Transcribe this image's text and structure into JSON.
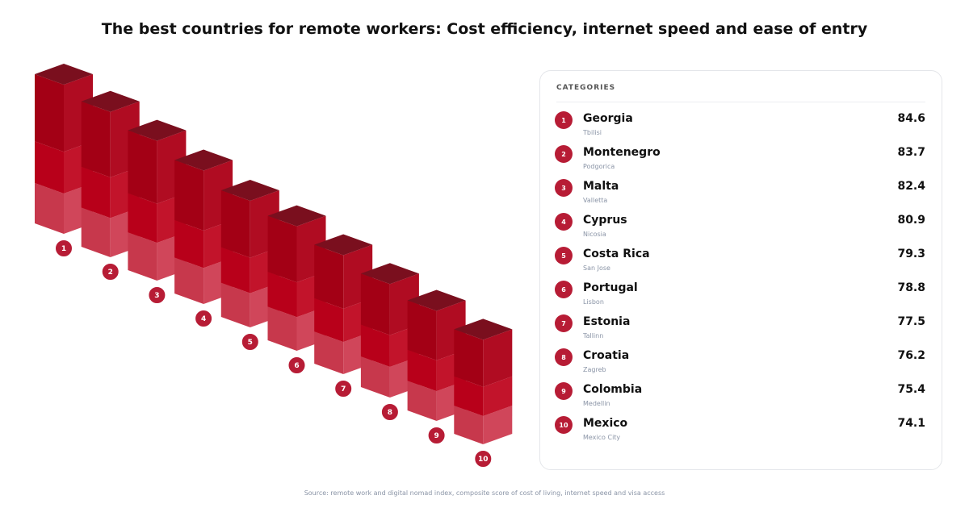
{
  "title": "The best countries for remote workers: Cost efficiency, internet speed and ease of entry",
  "chart_data": {
    "type": "bar",
    "title": "The best countries for remote workers: Cost efficiency, internet speed and ease of entry",
    "legend_title": "CATEGORIES",
    "categories": [
      "1",
      "2",
      "3",
      "4",
      "5",
      "6",
      "7",
      "8",
      "9",
      "10"
    ],
    "rows": [
      {
        "rank": "1",
        "name": "Georgia",
        "detail": "Tbilisi",
        "value": "84.6"
      },
      {
        "rank": "2",
        "name": "Montenegro",
        "detail": "Podgorica",
        "value": "83.7"
      },
      {
        "rank": "3",
        "name": "Malta",
        "detail": "Valletta",
        "value": "82.4"
      },
      {
        "rank": "4",
        "name": "Cyprus",
        "detail": "Nicosia",
        "value": "80.9"
      },
      {
        "rank": "5",
        "name": "Costa Rica",
        "detail": "San Jose",
        "value": "79.3"
      },
      {
        "rank": "6",
        "name": "Portugal",
        "detail": "Lisbon",
        "value": "78.8"
      },
      {
        "rank": "7",
        "name": "Estonia",
        "detail": "Tallinn",
        "value": "77.5"
      },
      {
        "rank": "8",
        "name": "Croatia",
        "detail": "Zagreb",
        "value": "76.2"
      },
      {
        "rank": "9",
        "name": "Colombia",
        "detail": "Medellin",
        "value": "75.4"
      },
      {
        "rank": "10",
        "name": "Mexico",
        "detail": "Mexico City",
        "value": "74.1"
      }
    ],
    "values": [
      84.6,
      83.7,
      82.4,
      80.9,
      79.3,
      78.8,
      77.5,
      76.2,
      75.4,
      74.1
    ],
    "colors": {
      "top": "#7a0f1e",
      "side_dark": "#8e0a1c",
      "front": "#c0172f",
      "base": "#c73a4d",
      "badge": "#b71c35"
    }
  },
  "footer": "Source: remote work and digital nomad index, composite score of cost of living, internet speed and visa access"
}
